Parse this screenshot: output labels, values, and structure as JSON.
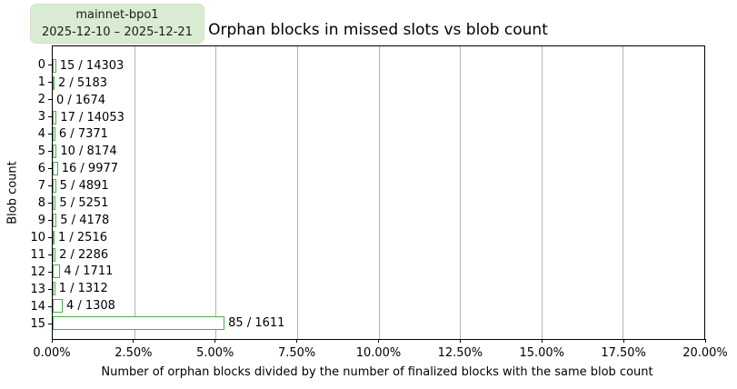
{
  "badge": {
    "name": "mainnet-bpo1",
    "date_range": "2025-12-10 – 2025-12-21"
  },
  "colors": {
    "bar_edge": "#4caf50",
    "bar_fill": "#ffffff",
    "badge_background": "#d9ecd3",
    "gridline": "#b3b3b3",
    "frame": "#000000"
  },
  "chart_data": {
    "type": "bar",
    "orientation": "horizontal",
    "title": "Orphan blocks in missed slots vs blob count",
    "xlabel": "Number of orphan blocks divided by the number of finalized blocks with the same blob count",
    "ylabel": "Blob count",
    "xlim": [
      0,
      20
    ],
    "x_unit": "percent",
    "grid": true,
    "legend_position": "none",
    "x_ticks": [
      {
        "value": 0.0,
        "label": "0.00%"
      },
      {
        "value": 2.5,
        "label": "2.50%"
      },
      {
        "value": 5.0,
        "label": "5.00%"
      },
      {
        "value": 7.5,
        "label": "7.50%"
      },
      {
        "value": 10.0,
        "label": "10.00%"
      },
      {
        "value": 12.5,
        "label": "12.50%"
      },
      {
        "value": 15.0,
        "label": "15.00%"
      },
      {
        "value": 17.5,
        "label": "17.50%"
      },
      {
        "value": 20.0,
        "label": "20.00%"
      }
    ],
    "bars": [
      {
        "blob_count": "0",
        "orphaned": 15,
        "finalized": 14303,
        "pct": 0.1049,
        "label": "15 / 14303"
      },
      {
        "blob_count": "1",
        "orphaned": 2,
        "finalized": 5183,
        "pct": 0.0386,
        "label": "2 / 5183"
      },
      {
        "blob_count": "2",
        "orphaned": 0,
        "finalized": 1674,
        "pct": 0.0,
        "label": "0 / 1674"
      },
      {
        "blob_count": "3",
        "orphaned": 17,
        "finalized": 14053,
        "pct": 0.121,
        "label": "17 / 14053"
      },
      {
        "blob_count": "4",
        "orphaned": 6,
        "finalized": 7371,
        "pct": 0.0814,
        "label": "6 / 7371"
      },
      {
        "blob_count": "5",
        "orphaned": 10,
        "finalized": 8174,
        "pct": 0.1223,
        "label": "10 / 8174"
      },
      {
        "blob_count": "6",
        "orphaned": 16,
        "finalized": 9977,
        "pct": 0.1604,
        "label": "16 / 9977"
      },
      {
        "blob_count": "7",
        "orphaned": 5,
        "finalized": 4891,
        "pct": 0.1022,
        "label": "5 / 4891"
      },
      {
        "blob_count": "8",
        "orphaned": 5,
        "finalized": 5251,
        "pct": 0.0952,
        "label": "5 / 5251"
      },
      {
        "blob_count": "9",
        "orphaned": 5,
        "finalized": 4178,
        "pct": 0.1197,
        "label": "5 / 4178"
      },
      {
        "blob_count": "10",
        "orphaned": 1,
        "finalized": 2516,
        "pct": 0.0397,
        "label": "1 / 2516"
      },
      {
        "blob_count": "11",
        "orphaned": 2,
        "finalized": 2286,
        "pct": 0.0875,
        "label": "2 / 2286"
      },
      {
        "blob_count": "12",
        "orphaned": 4,
        "finalized": 1711,
        "pct": 0.2338,
        "label": "4 / 1711"
      },
      {
        "blob_count": "13",
        "orphaned": 1,
        "finalized": 1312,
        "pct": 0.0762,
        "label": "1 / 1312"
      },
      {
        "blob_count": "14",
        "orphaned": 4,
        "finalized": 1308,
        "pct": 0.3058,
        "label": "4 / 1308"
      },
      {
        "blob_count": "15",
        "orphaned": 85,
        "finalized": 1611,
        "pct": 5.2762,
        "label": "85 / 1611"
      }
    ]
  }
}
